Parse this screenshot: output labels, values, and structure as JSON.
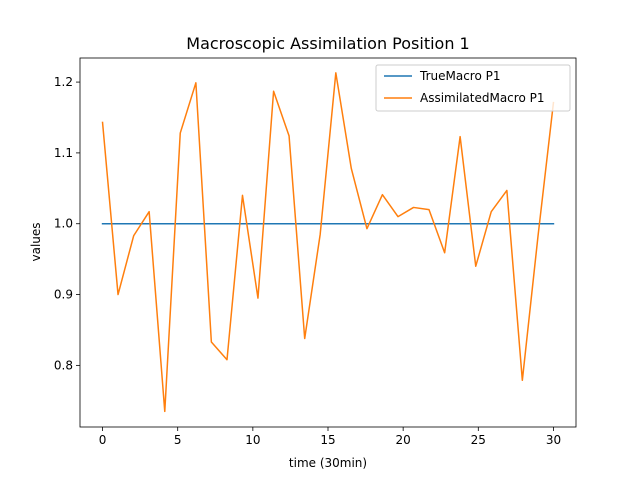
{
  "chart_data": {
    "type": "line",
    "title": "Macroscopic Assimilation Position 1",
    "xlabel": "time (30min)",
    "ylabel": "values",
    "xlim": [
      -1.5,
      31.5
    ],
    "ylim": [
      0.713,
      1.234
    ],
    "x_ticks": [
      0,
      5,
      10,
      15,
      20,
      25,
      30
    ],
    "x_tick_labels": [
      "0",
      "5",
      "10",
      "15",
      "20",
      "25",
      "30"
    ],
    "y_ticks": [
      0.8,
      0.9,
      1.0,
      1.1,
      1.2
    ],
    "y_tick_labels": [
      "0.8",
      "0.9",
      "1.0",
      "1.1",
      "1.2"
    ],
    "grid": false,
    "legend_position": "top-right",
    "series": [
      {
        "name": "TrueMacro P1",
        "color": "#1f77b4",
        "x": [
          0,
          30
        ],
        "y": [
          1.0,
          1.0
        ]
      },
      {
        "name": "AssimilatedMacro P1",
        "color": "#ff7f0e",
        "x": [
          0,
          1.03,
          2.07,
          3.1,
          4.14,
          5.17,
          6.21,
          7.24,
          8.28,
          9.31,
          10.34,
          11.38,
          12.41,
          13.45,
          14.48,
          15.52,
          16.55,
          17.59,
          18.62,
          19.66,
          20.69,
          21.72,
          22.76,
          23.79,
          24.83,
          25.86,
          26.9,
          27.93,
          28.97,
          30
        ],
        "y": [
          1.143,
          0.9,
          0.983,
          1.017,
          0.735,
          1.128,
          1.199,
          0.833,
          0.808,
          1.04,
          0.895,
          1.187,
          1.124,
          0.838,
          0.985,
          1.213,
          1.078,
          0.993,
          1.041,
          1.01,
          1.023,
          1.02,
          0.959,
          1.123,
          0.94,
          1.017,
          1.047,
          0.779,
          0.982,
          1.171
        ]
      }
    ]
  }
}
